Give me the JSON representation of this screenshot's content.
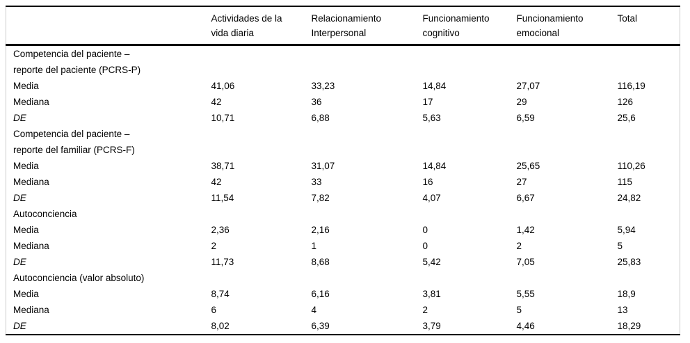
{
  "colors": {
    "text": "#000000",
    "rule": "#000000",
    "side_edge": "#c9c9c9",
    "background": "#ffffff"
  },
  "table": {
    "columns": [
      "",
      "Actividades de la\nvida diaria",
      "Relacionamiento\nInterpersonal",
      "Funcionamiento\ncognitivo",
      "Funcionamiento\nemocional",
      "Total"
    ],
    "sections": [
      {
        "label": "Competencia del paciente –\nreporte del paciente (PCRS-P)",
        "rows": [
          {
            "label": "Media",
            "italic": false,
            "values": [
              "41,06",
              "33,23",
              "14,84",
              "27,07",
              "116,19"
            ]
          },
          {
            "label": "Mediana",
            "italic": false,
            "values": [
              "42",
              "36",
              "17",
              "29",
              "126"
            ]
          },
          {
            "label": "DE",
            "italic": true,
            "values": [
              "10,71",
              "6,88",
              "5,63",
              "6,59",
              "25,6"
            ]
          }
        ]
      },
      {
        "label": "Competencia del paciente –\nreporte del familiar (PCRS-F)",
        "rows": [
          {
            "label": "Media",
            "italic": false,
            "values": [
              "38,71",
              "31,07",
              "14,84",
              "25,65",
              "110,26"
            ]
          },
          {
            "label": "Mediana",
            "italic": false,
            "values": [
              "42",
              "33",
              "16",
              "27",
              "115"
            ]
          },
          {
            "label": "DE",
            "italic": true,
            "values": [
              "11,54",
              "7,82",
              "4,07",
              "6,67",
              "24,82"
            ]
          }
        ]
      },
      {
        "label": "Autoconciencia",
        "rows": [
          {
            "label": "Media",
            "italic": false,
            "values": [
              "2,36",
              "2,16",
              "0",
              "1,42",
              "5,94"
            ]
          },
          {
            "label": "Mediana",
            "italic": false,
            "values": [
              "2",
              "1",
              "0",
              "2",
              "5"
            ]
          },
          {
            "label": "DE",
            "italic": true,
            "values": [
              "11,73",
              "8,68",
              "5,42",
              "7,05",
              "25,83"
            ]
          }
        ]
      },
      {
        "label": "Autoconciencia (valor absoluto)",
        "rows": [
          {
            "label": "Media",
            "italic": false,
            "values": [
              "8,74",
              "6,16",
              "3,81",
              "5,55",
              "18,9"
            ]
          },
          {
            "label": "Mediana",
            "italic": false,
            "values": [
              "6",
              "4",
              "2",
              "5",
              "13"
            ]
          },
          {
            "label": "DE",
            "italic": true,
            "values": [
              "8,02",
              "6,39",
              "3,79",
              "4,46",
              "18,29"
            ]
          }
        ]
      }
    ]
  }
}
